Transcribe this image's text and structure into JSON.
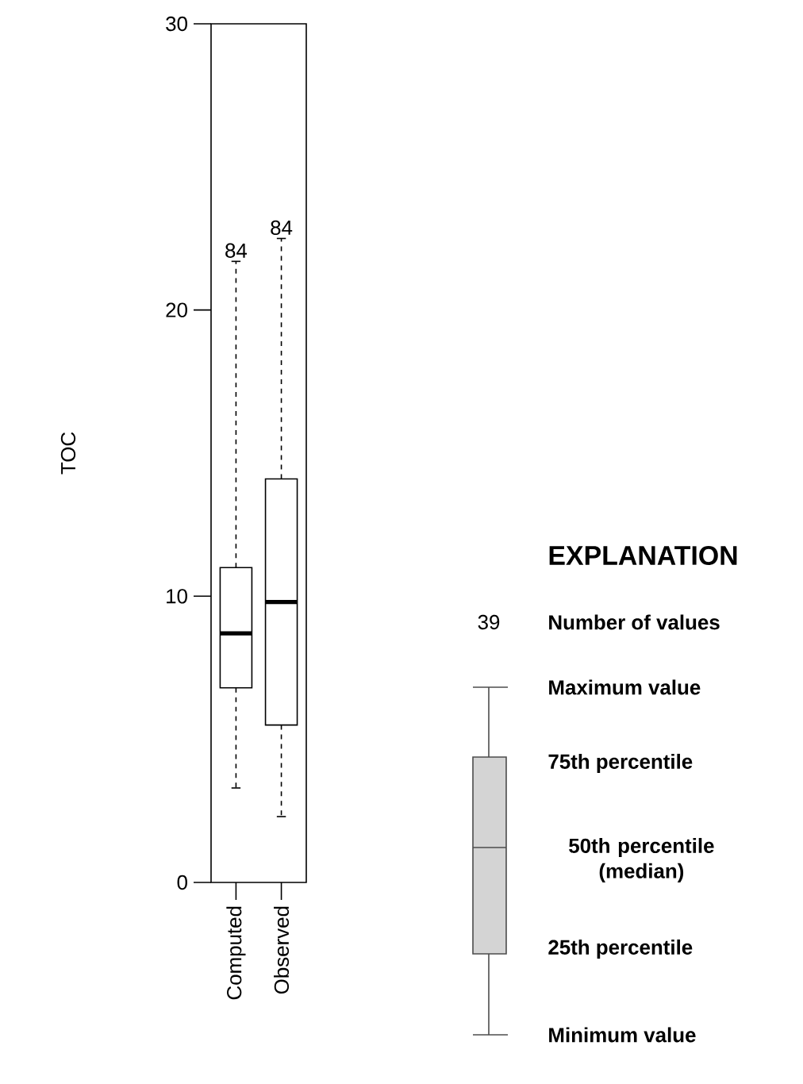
{
  "chart_data": {
    "type": "box",
    "ylabel": "TOC",
    "categories": [
      "Computed",
      "Observed"
    ],
    "boxes": [
      {
        "low": 3.3,
        "q1": 6.8,
        "median": 8.7,
        "q3": 11.0,
        "high": 21.7
      },
      {
        "low": 2.3,
        "q1": 5.5,
        "median": 9.8,
        "q3": 14.1,
        "high": 22.5
      }
    ],
    "ylim": [
      0,
      30
    ],
    "yticks": [
      0,
      10,
      20,
      30
    ],
    "annotations": [
      "84",
      "84",
      "EXPLANATION",
      "39",
      "Number of values",
      "Maximum value",
      "75th percentile",
      "50th percentile (median)",
      "25th percentile",
      "Minimum value"
    ]
  }
}
